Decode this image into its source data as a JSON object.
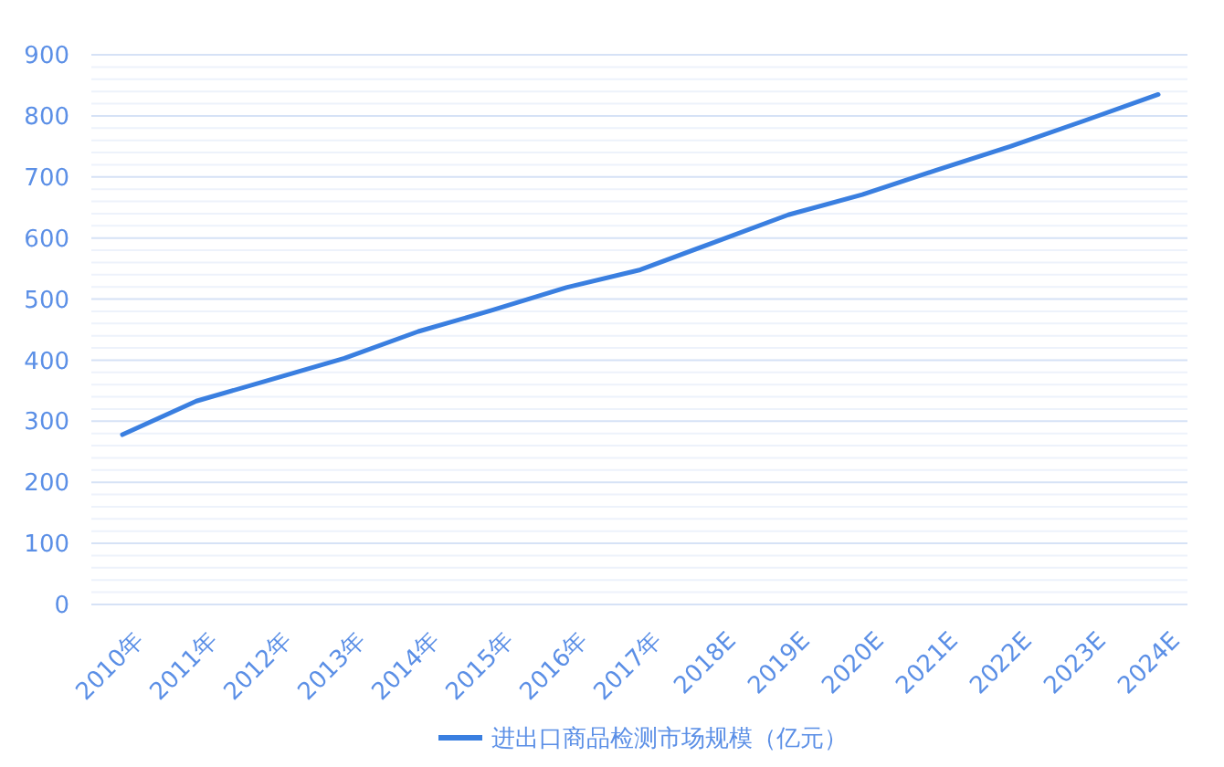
{
  "chart_data": {
    "type": "line",
    "categories": [
      "2010年",
      "2011年",
      "2012年",
      "2013年",
      "2014年",
      "2015年",
      "2016年",
      "2017年",
      "2018E",
      "2019E",
      "2020E",
      "2021E",
      "2022E",
      "2023E",
      "2024E"
    ],
    "series": [
      {
        "name": "进出口商品检测市场规模（亿元）",
        "color": "#3a7fe0",
        "values": [
          278,
          333,
          368,
          403,
          447,
          482,
          519,
          548,
          593,
          638,
          671,
          711,
          750,
          792,
          835
        ]
      }
    ],
    "ylim": [
      0,
      900
    ],
    "yticks": [
      0,
      100,
      200,
      300,
      400,
      500,
      600,
      700,
      800,
      900
    ],
    "grid": true,
    "legend": "bottom",
    "marker": "none",
    "line_style": "solid"
  }
}
